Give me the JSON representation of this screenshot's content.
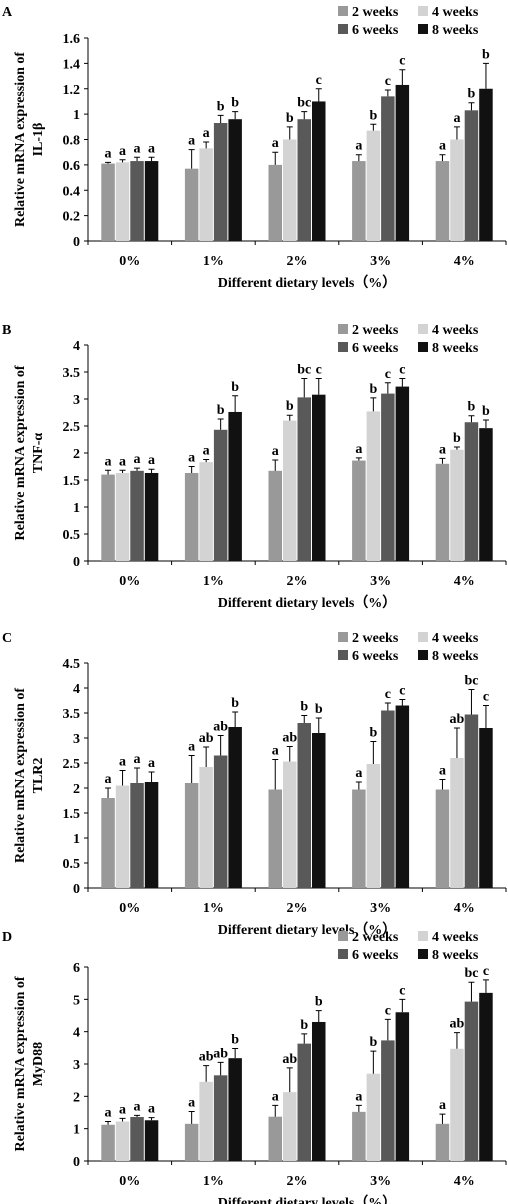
{
  "chart_data": [
    {
      "type": "bar",
      "panel": "A",
      "ylabel": [
        "Relative mRNA expression of",
        "IL-1β"
      ],
      "xlabel": "Different dietary levels（%）",
      "categories": [
        "0%",
        "1%",
        "2%",
        "3%",
        "4%"
      ],
      "series": [
        {
          "name": "2 weeks",
          "color": "#999999",
          "values": [
            0.61,
            0.57,
            0.6,
            0.63,
            0.63
          ],
          "errors": [
            0.01,
            0.15,
            0.1,
            0.05,
            0.05
          ],
          "letters": [
            "a",
            "a",
            "a",
            "a",
            "a"
          ]
        },
        {
          "name": "4 weeks",
          "color": "#d3d3d3",
          "values": [
            0.62,
            0.73,
            0.8,
            0.87,
            0.8
          ],
          "errors": [
            0.02,
            0.05,
            0.1,
            0.05,
            0.1
          ],
          "letters": [
            "a",
            "a",
            "b",
            "b",
            "a"
          ]
        },
        {
          "name": "6 weeks",
          "color": "#595959",
          "values": [
            0.63,
            0.93,
            0.96,
            1.14,
            1.03
          ],
          "errors": [
            0.03,
            0.06,
            0.06,
            0.05,
            0.06
          ],
          "letters": [
            "a",
            "b",
            "bc",
            "c",
            "b"
          ]
        },
        {
          "name": "8 weeks",
          "color": "#111111",
          "values": [
            0.63,
            0.96,
            1.1,
            1.23,
            1.2
          ],
          "errors": [
            0.03,
            0.06,
            0.1,
            0.12,
            0.2
          ],
          "letters": [
            "a",
            "b",
            "c",
            "c",
            "b"
          ]
        }
      ],
      "ylim": [
        0,
        1.6
      ],
      "yticks": [
        0,
        0.2,
        0.4,
        0.6,
        0.8,
        1,
        1.2,
        1.4,
        1.6
      ]
    },
    {
      "type": "bar",
      "panel": "B",
      "ylabel": [
        "Relative mRNA expression of",
        "TNF-α"
      ],
      "xlabel": "Different dietary levels（%）",
      "categories": [
        "0%",
        "1%",
        "2%",
        "3%",
        "4%"
      ],
      "series": [
        {
          "name": "2 weeks",
          "color": "#999999",
          "values": [
            1.6,
            1.63,
            1.67,
            1.86,
            1.8
          ],
          "errors": [
            0.08,
            0.12,
            0.2,
            0.05,
            0.1
          ],
          "letters": [
            "a",
            "a",
            "a",
            "a",
            "a"
          ]
        },
        {
          "name": "4 weeks",
          "color": "#d3d3d3",
          "values": [
            1.63,
            1.83,
            2.6,
            2.77,
            2.06
          ],
          "errors": [
            0.05,
            0.05,
            0.1,
            0.25,
            0.05
          ],
          "letters": [
            "a",
            "a",
            "b",
            "b",
            "b"
          ]
        },
        {
          "name": "6 weeks",
          "color": "#595959",
          "values": [
            1.67,
            2.43,
            3.03,
            3.1,
            2.57
          ],
          "errors": [
            0.05,
            0.2,
            0.35,
            0.2,
            0.12
          ],
          "letters": [
            "a",
            "b",
            "bc",
            "c",
            "b"
          ]
        },
        {
          "name": "8 weeks",
          "color": "#111111",
          "values": [
            1.63,
            2.76,
            3.08,
            3.23,
            2.46
          ],
          "errors": [
            0.07,
            0.3,
            0.3,
            0.15,
            0.15
          ],
          "letters": [
            "a",
            "b",
            "c",
            "c",
            "b"
          ]
        }
      ],
      "ylim": [
        0,
        4
      ],
      "yticks": [
        0,
        0.5,
        1,
        1.5,
        2,
        2.5,
        3,
        3.5,
        4
      ]
    },
    {
      "type": "bar",
      "panel": "C",
      "ylabel": [
        "Relative mRNA expression of",
        "TLR2"
      ],
      "xlabel": "Different dietary levels（%）",
      "categories": [
        "0%",
        "1%",
        "2%",
        "3%",
        "4%"
      ],
      "series": [
        {
          "name": "2 weeks",
          "color": "#999999",
          "values": [
            1.8,
            2.1,
            1.97,
            1.97,
            1.97
          ],
          "errors": [
            0.2,
            0.55,
            0.6,
            0.15,
            0.2
          ],
          "letters": [
            "a",
            "a",
            "a",
            "a",
            "a"
          ]
        },
        {
          "name": "4 weeks",
          "color": "#d3d3d3",
          "values": [
            2.05,
            2.42,
            2.53,
            2.48,
            2.6
          ],
          "errors": [
            0.3,
            0.4,
            0.3,
            0.45,
            0.6
          ],
          "letters": [
            "a",
            "ab",
            "ab",
            "b",
            "ab"
          ]
        },
        {
          "name": "6 weeks",
          "color": "#595959",
          "values": [
            2.1,
            2.65,
            3.3,
            3.55,
            3.47
          ],
          "errors": [
            0.3,
            0.4,
            0.15,
            0.15,
            0.5
          ],
          "letters": [
            "a",
            "ab",
            "b",
            "c",
            "bc"
          ]
        },
        {
          "name": "8 weeks",
          "color": "#111111",
          "values": [
            2.12,
            3.22,
            3.1,
            3.65,
            3.2
          ],
          "errors": [
            0.2,
            0.3,
            0.3,
            0.12,
            0.45
          ],
          "letters": [
            "a",
            "b",
            "b",
            "c",
            "c"
          ]
        }
      ],
      "ylim": [
        0,
        4.5
      ],
      "yticks": [
        0,
        0.5,
        1,
        1.5,
        2,
        2.5,
        3,
        3.5,
        4,
        4.5
      ]
    },
    {
      "type": "bar",
      "panel": "D",
      "ylabel": [
        "Relative mRNA expression of",
        "MyD88"
      ],
      "xlabel": "Different dietary levels（%）",
      "categories": [
        "0%",
        "1%",
        "2%",
        "3%",
        "4%"
      ],
      "series": [
        {
          "name": "2 weeks",
          "color": "#999999",
          "values": [
            1.12,
            1.15,
            1.37,
            1.52,
            1.15
          ],
          "errors": [
            0.1,
            0.38,
            0.35,
            0.2,
            0.3
          ],
          "letters": [
            "a",
            "a",
            "a",
            "a",
            "a"
          ]
        },
        {
          "name": "4 weeks",
          "color": "#d3d3d3",
          "values": [
            1.22,
            2.45,
            2.13,
            2.7,
            3.47
          ],
          "errors": [
            0.1,
            0.5,
            0.75,
            0.7,
            0.5
          ],
          "letters": [
            "a",
            "ab",
            "ab",
            "b",
            "ab"
          ]
        },
        {
          "name": "6 weeks",
          "color": "#595959",
          "values": [
            1.36,
            2.65,
            3.63,
            3.73,
            4.93
          ],
          "errors": [
            0.05,
            0.4,
            0.3,
            0.65,
            0.6
          ],
          "letters": [
            "a",
            "ab",
            "b",
            "c",
            "bc"
          ]
        },
        {
          "name": "8 weeks",
          "color": "#111111",
          "values": [
            1.26,
            3.18,
            4.3,
            4.6,
            5.2
          ],
          "errors": [
            0.08,
            0.3,
            0.35,
            0.4,
            0.4
          ],
          "letters": [
            "a",
            "b",
            "b",
            "c",
            "c"
          ]
        }
      ],
      "ylim": [
        0,
        6
      ],
      "yticks": [
        0,
        1,
        2,
        3,
        4,
        5,
        6
      ]
    }
  ]
}
